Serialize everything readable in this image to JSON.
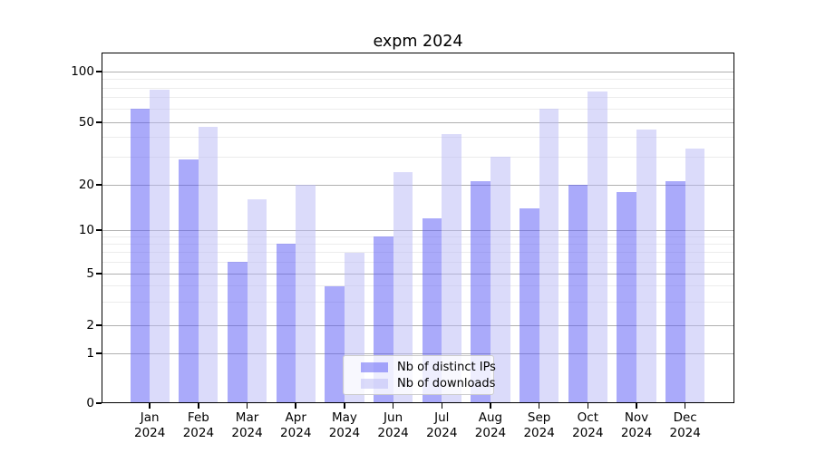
{
  "figure": {
    "title": "expm 2024"
  },
  "chart_data": {
    "type": "bar",
    "title": "expm 2024",
    "categories": [
      "Jan",
      "Feb",
      "Mar",
      "Apr",
      "May",
      "Jun",
      "Jul",
      "Aug",
      "Sep",
      "Oct",
      "Nov",
      "Dec"
    ],
    "x_second_line": "2024",
    "series": [
      {
        "name": "Nb of distinct IPs",
        "fill": "rgba(85,85,245,0.5)",
        "color_on_white": "#aaaafa",
        "values": [
          60,
          29,
          6,
          8,
          4,
          9,
          12,
          21,
          14,
          20,
          18,
          21
        ]
      },
      {
        "name": "Nb of downloads",
        "fill": "rgba(183,183,245,0.5)",
        "color_on_white": "#dbdbfa",
        "values": [
          78,
          47,
          16,
          20,
          7,
          24,
          42,
          30,
          60,
          76,
          45,
          34
        ]
      }
    ],
    "y_ticks": [
      0,
      1,
      2,
      5,
      10,
      20,
      50,
      100
    ],
    "y_minor_gridlines": [
      3,
      4,
      6,
      7,
      8,
      9,
      30,
      40,
      60,
      70,
      80,
      90
    ],
    "y_scale": "symlog-like (log above 1, compressed linear near 0)",
    "ylim": [
      0,
      130
    ],
    "grid": true,
    "legend": {
      "location": "lower center",
      "items": [
        {
          "label": "Nb of distinct IPs"
        },
        {
          "label": "Nb of downloads"
        }
      ]
    }
  },
  "colors": {
    "background": "#ffffff",
    "bar_distinct_ips": "rgba(85,85,245,0.5)",
    "bar_downloads": "rgba(183,183,245,0.5)",
    "major_gridline": "#b0b0b0",
    "minor_gridline": "#ececec",
    "spine": "#000000",
    "text": "#000000",
    "legend_border": "#cccccc",
    "legend_background": "rgba(255,255,255,0.8)"
  }
}
